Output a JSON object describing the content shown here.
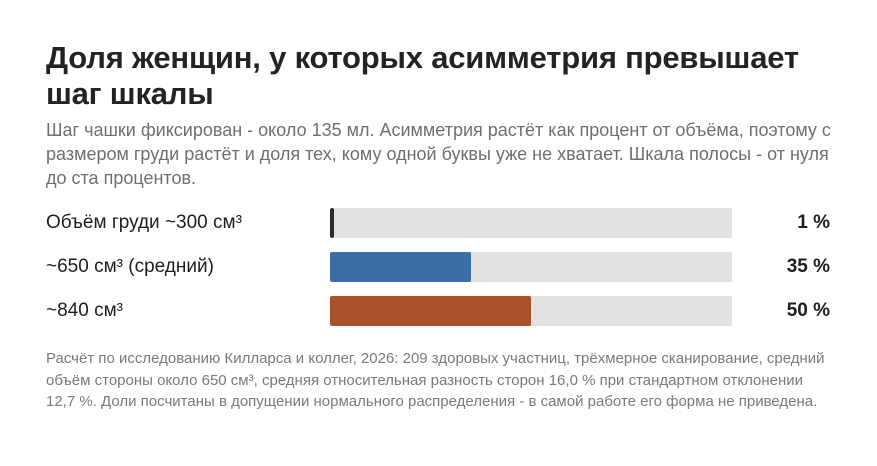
{
  "title": "Доля женщин, у которых асимметрия превышает шаг шкалы",
  "subtitle": "Шаг чашки фиксирован - около 135 мл. Асимметрия растёт как процент от объёма, поэтому с размером груди растёт и доля тех, кому одной буквы уже не хватает. Шкала полосы - от нуля до ста процентов.",
  "note": "Расчёт по исследованию Килларса и коллег, 2026: 209 здоровых участниц, трёхмерное сканирование, средний объём стороны около 650 см³, средняя относительная разность сторон 16,0 % при стандартном отклонении 12,7 %. Доли посчитаны в допущении нормального распределения - в самой работе его форма не приведена.",
  "chart_data": {
    "type": "bar",
    "orientation": "horizontal",
    "categories": [
      "Объём груди ~300 см³",
      "~650 см³ (средний)",
      "~840 см³"
    ],
    "values": [
      1,
      35,
      50
    ],
    "value_labels": [
      "1 %",
      "35 %",
      "50 %"
    ],
    "xlim": [
      0,
      100
    ],
    "unit": "%",
    "colors": [
      "#2b2b2b",
      "#3a6ea5",
      "#a9512a"
    ],
    "track_color": "#e2e2e2",
    "grid": false,
    "legend": "none"
  }
}
